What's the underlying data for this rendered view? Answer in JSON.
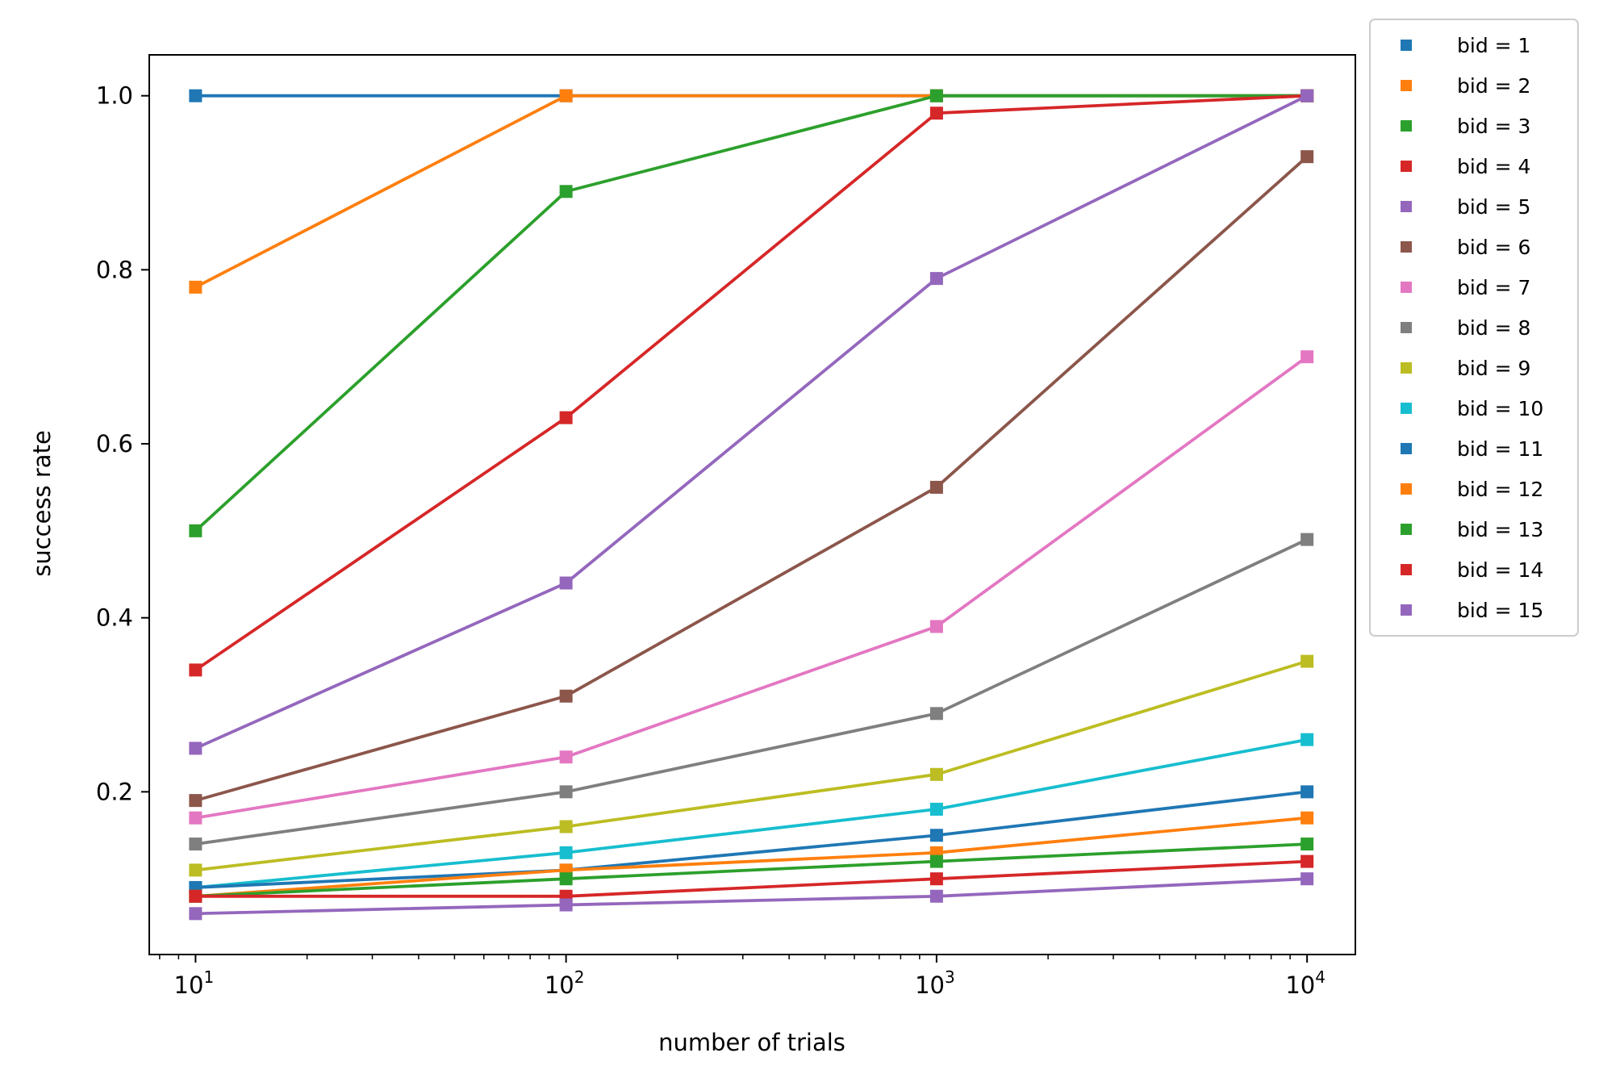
{
  "chart_data": {
    "type": "line",
    "title": "",
    "xlabel": "number of trials",
    "ylabel": "success rate",
    "xscale": "log",
    "x": [
      10,
      100,
      1000,
      10000
    ],
    "xlim": [
      7.5,
      13500
    ],
    "ylim": [
      0.013,
      1.047
    ],
    "xticks": [
      {
        "base": "10",
        "exp": "1"
      },
      {
        "base": "10",
        "exp": "2"
      },
      {
        "base": "10",
        "exp": "3"
      },
      {
        "base": "10",
        "exp": "4"
      }
    ],
    "yticks": [
      {
        "value": 0.2,
        "label": "0.2"
      },
      {
        "value": 0.4,
        "label": "0.4"
      },
      {
        "value": 0.6,
        "label": "0.6"
      },
      {
        "value": 0.8,
        "label": "0.8"
      },
      {
        "value": 1.0,
        "label": "1.0"
      }
    ],
    "grid": false,
    "legend": "outside-right-top",
    "marker": "square",
    "series": [
      {
        "name": "bid = 1",
        "color": "#1f77b4",
        "values": [
          1.0,
          1.0,
          1.0,
          1.0
        ]
      },
      {
        "name": "bid = 2",
        "color": "#ff7f0e",
        "values": [
          0.78,
          1.0,
          1.0,
          1.0
        ]
      },
      {
        "name": "bid = 3",
        "color": "#2ca02c",
        "values": [
          0.5,
          0.89,
          1.0,
          1.0
        ]
      },
      {
        "name": "bid = 4",
        "color": "#d62728",
        "values": [
          0.34,
          0.63,
          0.98,
          1.0
        ]
      },
      {
        "name": "bid = 5",
        "color": "#9467bd",
        "values": [
          0.25,
          0.44,
          0.79,
          1.0
        ]
      },
      {
        "name": "bid = 6",
        "color": "#8c564b",
        "values": [
          0.19,
          0.31,
          0.55,
          0.93
        ]
      },
      {
        "name": "bid = 7",
        "color": "#e377c2",
        "values": [
          0.17,
          0.24,
          0.39,
          0.7
        ]
      },
      {
        "name": "bid = 8",
        "color": "#7f7f7f",
        "values": [
          0.14,
          0.2,
          0.29,
          0.49
        ]
      },
      {
        "name": "bid = 9",
        "color": "#bcbd22",
        "values": [
          0.11,
          0.16,
          0.22,
          0.35
        ]
      },
      {
        "name": "bid = 10",
        "color": "#17becf",
        "values": [
          0.09,
          0.13,
          0.18,
          0.26
        ]
      },
      {
        "name": "bid = 11",
        "color": "#1f77b4",
        "values": [
          0.09,
          0.11,
          0.15,
          0.2
        ]
      },
      {
        "name": "bid = 12",
        "color": "#ff7f0e",
        "values": [
          0.08,
          0.11,
          0.13,
          0.17
        ]
      },
      {
        "name": "bid = 13",
        "color": "#2ca02c",
        "values": [
          0.08,
          0.1,
          0.12,
          0.14
        ]
      },
      {
        "name": "bid = 14",
        "color": "#d62728",
        "values": [
          0.08,
          0.08,
          0.1,
          0.12
        ]
      },
      {
        "name": "bid = 15",
        "color": "#9467bd",
        "values": [
          0.06,
          0.07,
          0.08,
          0.1
        ]
      }
    ]
  }
}
